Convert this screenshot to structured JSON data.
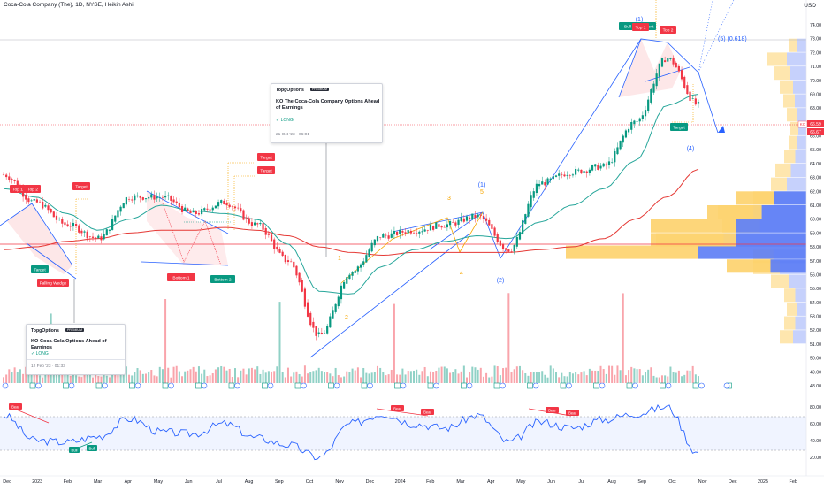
{
  "header": {
    "title": "Coca-Cola Company (The), 1D, NYSE, Heikin Ashi",
    "currency": "USD"
  },
  "price_axis": {
    "ticks": [
      "74.00",
      "73.00",
      "72.00",
      "71.00",
      "70.00",
      "69.00",
      "68.00",
      "67.00",
      "66.00",
      "65.00",
      "64.00",
      "63.00",
      "62.00",
      "61.00",
      "60.00",
      "59.00",
      "58.00",
      "57.00",
      "56.00",
      "55.00",
      "54.00",
      "53.00",
      "52.00",
      "51.00",
      "50.00",
      "49.00",
      "48.00"
    ],
    "last_price": "66.59",
    "last_price_2": "66.67",
    "symbol": "KO"
  },
  "rsi_axis": {
    "ticks": [
      "80.00",
      "60.00",
      "40.00",
      "20.00"
    ]
  },
  "time_axis": {
    "labels": [
      "Dec",
      "2023",
      "Feb",
      "Mar",
      "Apr",
      "May",
      "Jun",
      "Jul",
      "Aug",
      "Sep",
      "Oct",
      "Nov",
      "Dec",
      "2024",
      "Feb",
      "Mar",
      "Apr",
      "May",
      "Jun",
      "Jul",
      "Aug",
      "Sep",
      "Oct",
      "Nov",
      "Dec",
      "2025",
      "Feb"
    ]
  },
  "annotations": {
    "top1_a": "Top 1",
    "top2_a": "Top 2",
    "target_a": "Target",
    "target_b": "Target",
    "falling_wedge": "Falling Wedge",
    "target_c": "Target",
    "target_d": "Target",
    "bottom1": "Bottom 1",
    "bottom2": "Bottom 2",
    "target_e": "Target",
    "bull": "Bull",
    "top1_b": "Top 1",
    "bull_tail": "ent",
    "top2_b": "Top 2",
    "target_f": "Target",
    "wave_top": "(1)",
    "wave5_label": "(5) (0.618)",
    "wave4_label": "(4)",
    "wave1_mid": "(1)",
    "wave2_mid": "(2)",
    "o1": "1",
    "o2": "2",
    "o3": "3",
    "o4": "4",
    "o5": "5",
    "rsi_bear_1": "Bear",
    "rsi_bear_2": "Bear",
    "rsi_bear_3": "Bear",
    "rsi_bear_4": "Bear",
    "rsi_bear_5": "Bear",
    "rsi_bull_1": "Bull",
    "rsi_bull_2": "Bull"
  },
  "idea_cards": [
    {
      "brand": "TopgOptions",
      "pro": "PREMIUM",
      "headline": "KO The Coca-Cola Company Options Ahead of Earnings",
      "side": "✓ LONG",
      "date": "21 Oct '23 · 06:01"
    },
    {
      "brand": "TopgOptions",
      "pro": "PREMIUM",
      "headline": "KO Coca-Cola Options Ahead of Earnings",
      "side": "✓ LONG",
      "date": "12 Feb '23 · 01:33"
    }
  ],
  "colors": {
    "up": "#089981",
    "down": "#f23645",
    "ema_short": "#26a69a",
    "ema_long": "#e53935",
    "pattern_blue": "#2962ff",
    "orange": "#f7a600",
    "volume_profile_blue": "#5b7cf5",
    "volume_profile_yellow": "#fdd26b",
    "rsi": "#2962ff"
  },
  "chart_data": {
    "type": "candlestick",
    "chart_style": "Heikin Ashi",
    "interval": "1D",
    "exchange": "NYSE",
    "ylim": [
      48,
      74.3
    ],
    "close_series": {
      "x": [
        "Dec 2022",
        "Jan 2023",
        "Feb 2023",
        "Mar 2023",
        "Apr 2023",
        "May 2023",
        "Jun 2023",
        "Jul 2023",
        "Aug 2023",
        "Sep 2023",
        "Oct 2023",
        "Nov 2023",
        "Dec 2023",
        "Jan 2024",
        "Feb 2024",
        "Mar 2024",
        "Apr 2024",
        "May 2024",
        "Jun 2024",
        "Jul 2024",
        "Aug 2024",
        "Sep 2024",
        "Oct 2024"
      ],
      "values": [
        63.2,
        61.2,
        59.6,
        58.6,
        61.6,
        61.6,
        60.4,
        61.2,
        59.6,
        57.0,
        51.6,
        56.2,
        58.8,
        59.2,
        59.6,
        60.2,
        57.8,
        62.6,
        63.4,
        63.8,
        67.0,
        71.6,
        68.2
      ]
    },
    "ema_short_series": [
      62.2,
      61.6,
      60.4,
      59.2,
      60.0,
      61.0,
      60.6,
      60.4,
      60.0,
      58.2,
      54.8,
      54.6,
      56.6,
      57.8,
      58.4,
      58.8,
      58.6,
      59.8,
      61.0,
      62.2,
      64.2,
      68.2,
      69.0
    ],
    "ema_long_series": [
      57.8,
      58.0,
      58.4,
      58.6,
      59.0,
      59.2,
      59.2,
      59.4,
      59.2,
      58.8,
      58.0,
      57.6,
      57.4,
      57.6,
      57.6,
      57.6,
      57.6,
      57.8,
      58.0,
      58.6,
      60.0,
      61.6,
      63.6
    ],
    "rsi_series": [
      70,
      40,
      38,
      45,
      66,
      50,
      48,
      60,
      43,
      35,
      20,
      60,
      72,
      60,
      55,
      70,
      38,
      62,
      55,
      65,
      72,
      80,
      25
    ],
    "rsi_ylim": [
      15,
      85
    ]
  }
}
